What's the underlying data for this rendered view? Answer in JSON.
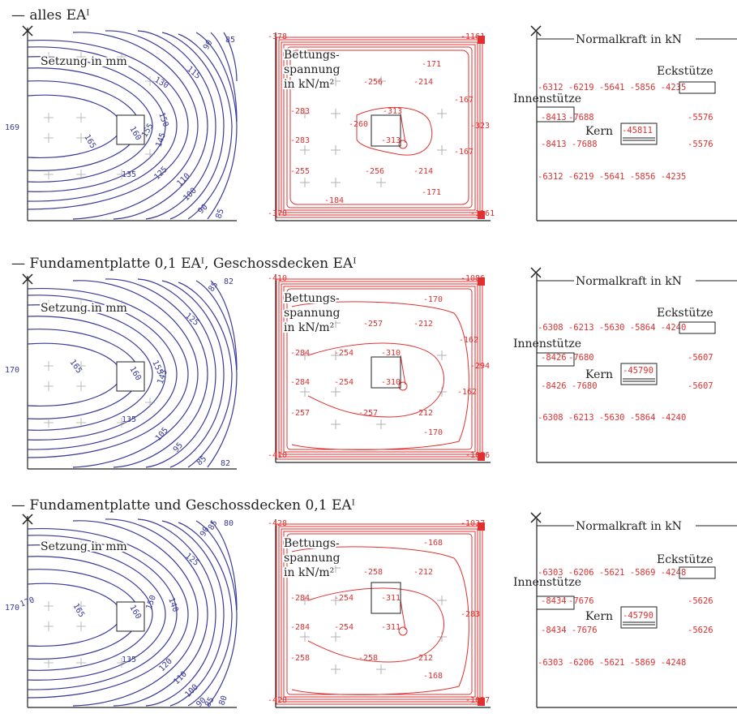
{
  "colors": {
    "settlement": "#3a3a9a",
    "pressure": "#e03030",
    "frame": "#222222"
  },
  "common": {
    "settlement_title": "Setzung in mm",
    "pressure_title": [
      "Bettungs-",
      "spannung",
      "in kN/m²"
    ],
    "force_title": "Normalkraft in kN",
    "corner": "Eckstütze",
    "inner": "Innenstütze",
    "core": "Kern"
  },
  "rows": [
    {
      "heading": "— alles EAᴵ",
      "settlement": {
        "left": "169",
        "labels": [
          "165",
          "160",
          "155",
          "145",
          "150",
          "135",
          "125",
          "110",
          "100",
          "90",
          "85",
          "130",
          "115",
          "90",
          "85"
        ]
      },
      "pressure": {
        "corners": [
          "-378",
          "-1161",
          "-378",
          "-1161"
        ],
        "values": [
          "-171",
          "-256",
          "-214",
          "-167",
          "-283",
          "-313",
          "-260",
          "-323",
          "-283",
          "-313",
          "-167",
          "-255",
          "-256",
          "-214",
          "-171",
          "-184"
        ]
      },
      "force": {
        "row1": "-6312 -6219 -5641 -5856 -4235",
        "corner_value": "-4235",
        "inner_value": "-8413",
        "row2_rest": "-7688",
        "row2_right": "-5576",
        "core_value": "-45811",
        "row3": "-8413 -7688",
        "row3_right": "-5576",
        "row4": "-6312 -6219 -5641 -5856 -4235"
      }
    },
    {
      "heading": "— Fundamentplatte 0,1 EAᴵ, Geschossdecken EAᴵ",
      "settlement": {
        "left": "170",
        "labels": [
          "165",
          "160",
          "155",
          "145",
          "135",
          "105",
          "95",
          "85",
          "82",
          "125",
          "85",
          "82"
        ]
      },
      "pressure": {
        "corners": [
          "-410",
          "-1086",
          "-410",
          "-1086"
        ],
        "values": [
          "-170",
          "-257",
          "-212",
          "-162",
          "-284",
          "-254",
          "-310",
          "-294",
          "-284",
          "-254",
          "-310",
          "-162",
          "-257",
          "-257",
          "-212",
          "-170"
        ]
      },
      "force": {
        "row1": "-6308 -6213 -5630 -5864 -4240",
        "corner_value": "-4240",
        "inner_value": "-8426",
        "row2_rest": "-7680",
        "row2_right": "-5607",
        "core_value": "-45790",
        "row3": "-8426 -7680",
        "row3_right": "-5607",
        "row4": "-6308 -6213 -5630 -5864 -4240"
      }
    },
    {
      "heading": "— Fundamentplatte und Geschossdecken 0,1 EAᴵ",
      "settlement": {
        "left": "170",
        "labels": [
          "170",
          "165",
          "160",
          "150",
          "140",
          "135",
          "120",
          "110",
          "100",
          "90",
          "85",
          "80",
          "125",
          "90",
          "85",
          "80"
        ]
      },
      "pressure": {
        "corners": [
          "-428",
          "-1037",
          "-428",
          "-1037"
        ],
        "values": [
          "-168",
          "-258",
          "-212",
          "-284",
          "-254",
          "-311",
          "-283",
          "-284",
          "-254",
          "-311",
          "-258",
          "-258",
          "-212",
          "-168"
        ]
      },
      "force": {
        "row1": "-6303 -6206 -5621 -5869 -4248",
        "corner_value": "-4248",
        "inner_value": "-8434",
        "row2_rest": "-7676",
        "row2_right": "-5626",
        "core_value": "-45790",
        "row3": "-8434 -7676",
        "row3_right": "-5626",
        "row4": "-6303 -6206 -5621 -5869 -4248"
      }
    }
  ]
}
